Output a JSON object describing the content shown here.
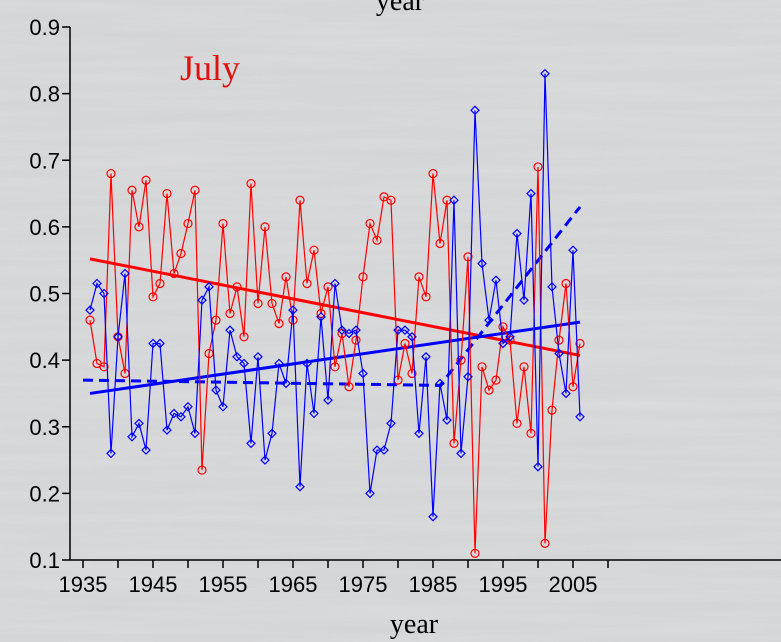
{
  "chart_data": {
    "type": "line",
    "title": "year",
    "panel_label": "July",
    "xlabel": "year",
    "ylabel": "",
    "xlim": [
      1935,
      2010
    ],
    "ylim": [
      0.1,
      0.9
    ],
    "xticks": [
      1935,
      1945,
      1955,
      1965,
      1975,
      1985,
      1995,
      2005
    ],
    "xtick_labels": [
      "1935",
      "1945",
      "1955",
      "1965",
      "1975",
      "1985",
      "1995",
      "2005"
    ],
    "yticks": [
      0.1,
      0.2,
      0.3,
      0.4,
      0.5,
      0.6,
      0.7,
      0.8,
      0.9
    ],
    "ytick_labels": [
      "0.1",
      "0.2",
      "0.3",
      "0.4",
      "0.5",
      "0.6",
      "0.7",
      "0.8",
      "0.9"
    ],
    "grid": false,
    "colors": {
      "red": "#ff0000",
      "blue": "#0000ff",
      "panel_label": "#e01010"
    },
    "series": [
      {
        "color": "#ff0000",
        "marker": "circle",
        "x": [
          1936,
          1937,
          1938,
          1939,
          1940,
          1941,
          1942,
          1943,
          1944,
          1945,
          1946,
          1947,
          1948,
          1949,
          1950,
          1951,
          1952,
          1953,
          1954,
          1955,
          1956,
          1957,
          1958,
          1959,
          1960,
          1961,
          1962,
          1963,
          1964,
          1965,
          1966,
          1967,
          1968,
          1969,
          1970,
          1971,
          1972,
          1973,
          1974,
          1975,
          1976,
          1977,
          1978,
          1979,
          1980,
          1981,
          1982,
          1983,
          1984,
          1985,
          1986,
          1987,
          1988,
          1989,
          1990,
          1991,
          1992,
          1993,
          1994,
          1995,
          1996,
          1997,
          1998,
          1999,
          2000,
          2001,
          2002,
          2003,
          2004,
          2005,
          2006
        ],
        "values": [
          0.46,
          0.395,
          0.39,
          0.68,
          0.435,
          0.38,
          0.655,
          0.6,
          0.67,
          0.495,
          0.515,
          0.65,
          0.53,
          0.56,
          0.605,
          0.655,
          0.235,
          0.41,
          0.46,
          0.605,
          0.47,
          0.51,
          0.435,
          0.665,
          0.485,
          0.6,
          0.485,
          0.455,
          0.525,
          0.46,
          0.64,
          0.515,
          0.565,
          0.47,
          0.51,
          0.39,
          0.44,
          0.36,
          0.43,
          0.525,
          0.605,
          0.58,
          0.645,
          0.64,
          0.37,
          0.425,
          0.38,
          0.525,
          0.495,
          0.68,
          0.575,
          0.64,
          0.275,
          0.4,
          0.555,
          0.11,
          0.39,
          0.355,
          0.37,
          0.45,
          0.43,
          0.305,
          0.39,
          0.29,
          0.69,
          0.125,
          0.325,
          0.43,
          0.515,
          0.36,
          0.425
        ]
      },
      {
        "color": "#0000ff",
        "marker": "diamond",
        "x": [
          1936,
          1937,
          1938,
          1939,
          1940,
          1941,
          1942,
          1943,
          1944,
          1945,
          1946,
          1947,
          1948,
          1949,
          1950,
          1951,
          1952,
          1953,
          1954,
          1955,
          1956,
          1957,
          1958,
          1959,
          1960,
          1961,
          1962,
          1963,
          1964,
          1965,
          1966,
          1967,
          1968,
          1969,
          1970,
          1971,
          1972,
          1973,
          1974,
          1975,
          1976,
          1977,
          1978,
          1979,
          1980,
          1981,
          1982,
          1983,
          1984,
          1985,
          1986,
          1987,
          1988,
          1989,
          1990,
          1991,
          1992,
          1993,
          1994,
          1995,
          1996,
          1997,
          1998,
          1999,
          2000,
          2001,
          2002,
          2003,
          2004,
          2005,
          2006
        ],
        "values": [
          0.475,
          0.515,
          0.5,
          0.26,
          0.435,
          0.53,
          0.285,
          0.305,
          0.265,
          0.425,
          0.425,
          0.295,
          0.32,
          0.315,
          0.33,
          0.29,
          0.49,
          0.51,
          0.355,
          0.33,
          0.445,
          0.405,
          0.395,
          0.275,
          0.405,
          0.25,
          0.29,
          0.395,
          0.365,
          0.475,
          0.21,
          0.395,
          0.32,
          0.465,
          0.34,
          0.515,
          0.445,
          0.44,
          0.445,
          0.38,
          0.2,
          0.265,
          0.265,
          0.305,
          0.445,
          0.445,
          0.435,
          0.29,
          0.405,
          0.165,
          0.365,
          0.31,
          0.64,
          0.26,
          0.375,
          0.775,
          0.545,
          0.46,
          0.52,
          0.425,
          0.435,
          0.59,
          0.49,
          0.65,
          0.24,
          0.83,
          0.51,
          0.41,
          0.35,
          0.565,
          0.315
        ]
      }
    ],
    "trend_lines": [
      {
        "color": "#ff0000",
        "style": "solid",
        "x": [
          1936,
          2006
        ],
        "values": [
          0.552,
          0.407
        ]
      },
      {
        "color": "#0000ff",
        "style": "solid",
        "x": [
          1936,
          2006
        ],
        "values": [
          0.35,
          0.457
        ]
      },
      {
        "color": "#0000ff",
        "style": "dashed",
        "x": [
          1935,
          1986,
          2006
        ],
        "values": [
          0.37,
          0.362,
          0.63
        ]
      }
    ]
  }
}
